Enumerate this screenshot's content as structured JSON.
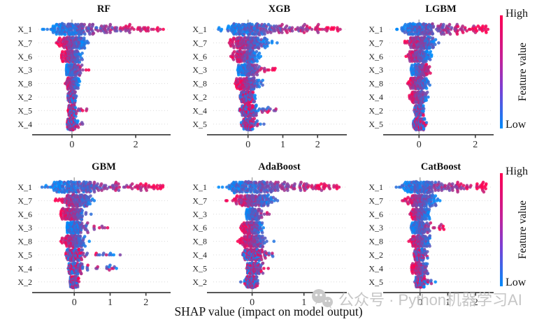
{
  "figure": {
    "xlabel": "SHAP value (impact on model output)",
    "watermark": "公众号 · Python机器学习AI",
    "colorbar": {
      "high": "High",
      "low": "Low",
      "label": "Feature value",
      "color_high": "#ff0051",
      "color_low": "#008bfb"
    }
  },
  "chart_data": [
    {
      "type": "scatter",
      "variant": "shap-beeswarm",
      "title": "RF",
      "xticks": [
        0,
        2
      ],
      "xlim": [
        -1.05,
        3.05
      ],
      "rows": [
        {
          "f": "X_1",
          "lo": -0.95,
          "hi": 2.9,
          "mu": -0.12,
          "sd": 0.3,
          "tail": 0.4,
          "mode": "pos",
          "n": 240
        },
        {
          "f": "X_7",
          "lo": -0.5,
          "hi": 0.52,
          "mu": 0.03,
          "sd": 0.2,
          "tail": 0,
          "mode": "neg",
          "n": 180
        },
        {
          "f": "X_6",
          "lo": -0.33,
          "hi": 0.4,
          "mu": 0.0,
          "sd": 0.14,
          "tail": 0,
          "mode": "neg",
          "n": 160
        },
        {
          "f": "X_3",
          "lo": -0.18,
          "hi": 0.55,
          "mu": 0.02,
          "sd": 0.11,
          "tail": 0.07,
          "mode": "pos",
          "n": 150
        },
        {
          "f": "X_8",
          "lo": -0.22,
          "hi": 0.27,
          "mu": 0.01,
          "sd": 0.1,
          "tail": 0,
          "mode": "neg",
          "n": 150
        },
        {
          "f": "X_2",
          "lo": -0.14,
          "hi": 0.16,
          "mu": 0.0,
          "sd": 0.06,
          "tail": 0,
          "mode": "mixed",
          "n": 130
        },
        {
          "f": "X_5",
          "lo": -0.12,
          "hi": 0.47,
          "mu": 0.0,
          "sd": 0.06,
          "tail": 0.05,
          "mode": "mixed",
          "n": 130
        },
        {
          "f": "X_4",
          "lo": -0.15,
          "hi": 0.38,
          "mu": 0.0,
          "sd": 0.07,
          "tail": 0.07,
          "mode": "mixed",
          "n": 140
        }
      ]
    },
    {
      "type": "scatter",
      "variant": "shap-beeswarm",
      "title": "XGB",
      "xticks": [
        0,
        1,
        2
      ],
      "xlim": [
        -1.0,
        2.8
      ],
      "rows": [
        {
          "f": "X_1",
          "lo": -0.88,
          "hi": 2.65,
          "mu": -0.1,
          "sd": 0.3,
          "tail": 0.42,
          "mode": "pos",
          "n": 240
        },
        {
          "f": "X_7",
          "lo": -0.75,
          "hi": 0.85,
          "mu": 0.05,
          "sd": 0.26,
          "tail": 0,
          "mode": "neg",
          "n": 190
        },
        {
          "f": "X_6",
          "lo": -0.5,
          "hi": 0.38,
          "mu": -0.04,
          "sd": 0.17,
          "tail": 0,
          "mode": "neg",
          "n": 170
        },
        {
          "f": "X_3",
          "lo": -0.3,
          "hi": 0.8,
          "mu": 0.0,
          "sd": 0.14,
          "tail": 0.1,
          "mode": "pos",
          "n": 160
        },
        {
          "f": "X_8",
          "lo": -0.38,
          "hi": 0.5,
          "mu": 0.0,
          "sd": 0.16,
          "tail": 0,
          "mode": "neg",
          "n": 160
        },
        {
          "f": "X_2",
          "lo": -0.27,
          "hi": 0.22,
          "mu": -0.02,
          "sd": 0.1,
          "tail": 0,
          "mode": "mixed",
          "n": 140
        },
        {
          "f": "X_4",
          "lo": -0.27,
          "hi": 0.9,
          "mu": 0.0,
          "sd": 0.11,
          "tail": 0.13,
          "mode": "mixed",
          "n": 150
        },
        {
          "f": "X_5",
          "lo": -0.22,
          "hi": 0.62,
          "mu": 0.0,
          "sd": 0.09,
          "tail": 0.07,
          "mode": "mixed",
          "n": 140
        }
      ]
    },
    {
      "type": "scatter",
      "variant": "shap-beeswarm",
      "title": "LGBM",
      "xticks": [
        0,
        2
      ],
      "xlim": [
        -1.05,
        2.6
      ],
      "rows": [
        {
          "f": "X_1",
          "lo": -0.9,
          "hi": 2.45,
          "mu": -0.1,
          "sd": 0.29,
          "tail": 0.42,
          "mode": "pos",
          "n": 230
        },
        {
          "f": "X_7",
          "lo": -0.65,
          "hi": 0.72,
          "mu": 0.05,
          "sd": 0.24,
          "tail": 0,
          "mode": "neg",
          "n": 185
        },
        {
          "f": "X_6",
          "lo": -0.48,
          "hi": 0.45,
          "mu": -0.02,
          "sd": 0.17,
          "tail": 0,
          "mode": "neg",
          "n": 170
        },
        {
          "f": "X_3",
          "lo": -0.28,
          "hi": 0.52,
          "mu": 0.04,
          "sd": 0.15,
          "tail": 0,
          "mode": "pos",
          "n": 160
        },
        {
          "f": "X_8",
          "lo": -0.42,
          "hi": 0.42,
          "mu": 0.0,
          "sd": 0.16,
          "tail": 0,
          "mode": "neg",
          "n": 160
        },
        {
          "f": "X_4",
          "lo": -0.35,
          "hi": 0.45,
          "mu": 0.0,
          "sd": 0.14,
          "tail": 0,
          "mode": "neg",
          "n": 150
        },
        {
          "f": "X_2",
          "lo": -0.17,
          "hi": 0.22,
          "mu": 0.0,
          "sd": 0.08,
          "tail": 0,
          "mode": "mixed",
          "n": 130
        },
        {
          "f": "X_5",
          "lo": -0.22,
          "hi": 0.32,
          "mu": 0.0,
          "sd": 0.09,
          "tail": 0,
          "mode": "mixed",
          "n": 130
        }
      ]
    },
    {
      "type": "scatter",
      "variant": "shap-beeswarm",
      "title": "GBM",
      "xticks": [
        0,
        1,
        2
      ],
      "xlim": [
        -1.0,
        2.65
      ],
      "rows": [
        {
          "f": "X_1",
          "lo": -0.92,
          "hi": 2.5,
          "mu": -0.1,
          "sd": 0.32,
          "tail": 0.4,
          "mode": "pos",
          "n": 240
        },
        {
          "f": "X_7",
          "lo": -0.62,
          "hi": 0.68,
          "mu": 0.04,
          "sd": 0.21,
          "tail": 0,
          "mode": "neg",
          "n": 180
        },
        {
          "f": "X_6",
          "lo": -0.38,
          "hi": 0.52,
          "mu": -0.02,
          "sd": 0.16,
          "tail": 0,
          "mode": "neg",
          "n": 170
        },
        {
          "f": "X_3",
          "lo": -0.22,
          "hi": 1.1,
          "mu": 0.0,
          "sd": 0.12,
          "tail": 0.09,
          "mode": "pos",
          "n": 160
        },
        {
          "f": "X_8",
          "lo": -0.38,
          "hi": 0.48,
          "mu": 0.0,
          "sd": 0.15,
          "tail": 0,
          "mode": "neg",
          "n": 160
        },
        {
          "f": "X_5",
          "lo": -0.42,
          "hi": 1.3,
          "mu": 0.0,
          "sd": 0.11,
          "tail": 0.09,
          "mode": "mixed",
          "n": 150
        },
        {
          "f": "X_4",
          "lo": -0.18,
          "hi": 1.25,
          "mu": 0.01,
          "sd": 0.1,
          "tail": 0.13,
          "mode": "mixed",
          "n": 150
        },
        {
          "f": "X_2",
          "lo": -0.12,
          "hi": 0.15,
          "mu": 0.0,
          "sd": 0.06,
          "tail": 0,
          "mode": "mixed",
          "n": 120
        }
      ]
    },
    {
      "type": "scatter",
      "variant": "shap-beeswarm",
      "title": "AdaBoost",
      "xticks": [
        0,
        1
      ],
      "xlim": [
        -0.75,
        1.8
      ],
      "rows": [
        {
          "f": "X_1",
          "lo": -0.66,
          "hi": 1.7,
          "mu": -0.08,
          "sd": 0.22,
          "tail": 0.44,
          "mode": "pos",
          "n": 240
        },
        {
          "f": "X_7",
          "lo": -0.52,
          "hi": 0.58,
          "mu": 0.04,
          "sd": 0.19,
          "tail": 0,
          "mode": "neg",
          "n": 185
        },
        {
          "f": "X_3",
          "lo": -0.12,
          "hi": 0.38,
          "mu": 0.02,
          "sd": 0.08,
          "tail": 0.12,
          "mode": "pos",
          "n": 150
        },
        {
          "f": "X_6",
          "lo": -0.22,
          "hi": 0.28,
          "mu": 0.0,
          "sd": 0.1,
          "tail": 0,
          "mode": "neg",
          "n": 150
        },
        {
          "f": "X_8",
          "lo": -0.28,
          "hi": 0.45,
          "mu": 0.0,
          "sd": 0.12,
          "tail": 0,
          "mode": "neg",
          "n": 155
        },
        {
          "f": "X_4",
          "lo": -0.18,
          "hi": 0.42,
          "mu": 0.0,
          "sd": 0.1,
          "tail": 0.09,
          "mode": "mixed",
          "n": 145
        },
        {
          "f": "X_5",
          "lo": -0.12,
          "hi": 0.32,
          "mu": 0.01,
          "sd": 0.07,
          "tail": 0.07,
          "mode": "mixed",
          "n": 130
        },
        {
          "f": "X_2",
          "lo": -0.22,
          "hi": 0.12,
          "mu": -0.01,
          "sd": 0.07,
          "tail": 0,
          "mode": "mixed",
          "n": 130
        }
      ]
    },
    {
      "type": "scatter",
      "variant": "shap-beeswarm",
      "title": "CatBoost",
      "xticks": [
        0,
        1,
        2
      ],
      "xlim": [
        -1.1,
        2.6
      ],
      "rows": [
        {
          "f": "X_1",
          "lo": -0.88,
          "hi": 2.4,
          "mu": -0.1,
          "sd": 0.3,
          "tail": 0.42,
          "mode": "pos",
          "n": 235
        },
        {
          "f": "X_7",
          "lo": -0.68,
          "hi": 0.72,
          "mu": 0.05,
          "sd": 0.25,
          "tail": 0,
          "mode": "neg",
          "n": 185
        },
        {
          "f": "X_6",
          "lo": -0.38,
          "hi": 0.36,
          "mu": -0.02,
          "sd": 0.15,
          "tail": 0,
          "mode": "neg",
          "n": 165
        },
        {
          "f": "X_3",
          "lo": -0.32,
          "hi": 0.88,
          "mu": 0.0,
          "sd": 0.14,
          "tail": 0.1,
          "mode": "pos",
          "n": 160
        },
        {
          "f": "X_8",
          "lo": -0.42,
          "hi": 0.52,
          "mu": 0.0,
          "sd": 0.17,
          "tail": 0,
          "mode": "neg",
          "n": 160
        },
        {
          "f": "X_2",
          "lo": -0.22,
          "hi": 0.3,
          "mu": 0.0,
          "sd": 0.1,
          "tail": 0,
          "mode": "mixed",
          "n": 140
        },
        {
          "f": "X_4",
          "lo": -0.32,
          "hi": 0.52,
          "mu": 0.0,
          "sd": 0.13,
          "tail": 0,
          "mode": "neg",
          "n": 150
        },
        {
          "f": "X_5",
          "lo": -0.28,
          "hi": 0.65,
          "mu": 0.0,
          "sd": 0.1,
          "tail": 0.07,
          "mode": "mixed",
          "n": 140
        }
      ]
    }
  ]
}
